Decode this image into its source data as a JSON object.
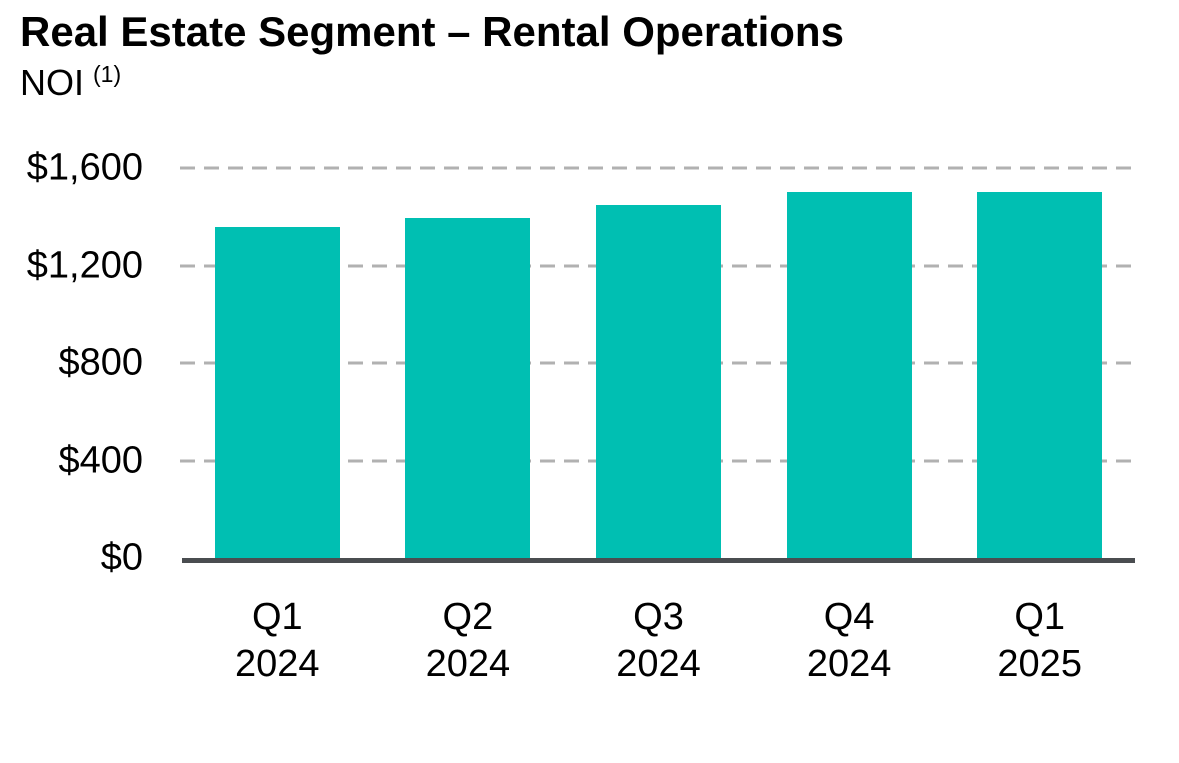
{
  "page": {
    "background_color": "#ffffff"
  },
  "header": {
    "title": "Real Estate Segment – Rental Operations",
    "subtitle": "NOI",
    "subtitle_superscript": "(1)"
  },
  "chart_data": {
    "type": "bar",
    "title": "Real Estate Segment – Rental Operations",
    "subtitle": "NOI (1)",
    "categories": [
      "Q1 2024",
      "Q2 2024",
      "Q3 2024",
      "Q4 2024",
      "Q1 2025"
    ],
    "values": [
      1360,
      1395,
      1450,
      1500,
      1500
    ],
    "xlabel": "",
    "ylabel": "",
    "ylim": [
      0,
      1600
    ],
    "ytick_interval": 400,
    "yticks": [
      {
        "value": 1600,
        "label": "$1,600"
      },
      {
        "value": 1200,
        "label": "$1,200"
      },
      {
        "value": 800,
        "label": "$800"
      },
      {
        "value": 400,
        "label": "$400"
      },
      {
        "value": 0,
        "label": "$0"
      }
    ],
    "grid": "horizontal dashed gridlines at each y tick, no gridline at $0 (solid baseline axis)",
    "legend": "none",
    "bar_color": "#00BFB2",
    "gridline_color": "#B1B1B1",
    "axis_line_color": "#4A4D50",
    "text_color": "#000000"
  }
}
